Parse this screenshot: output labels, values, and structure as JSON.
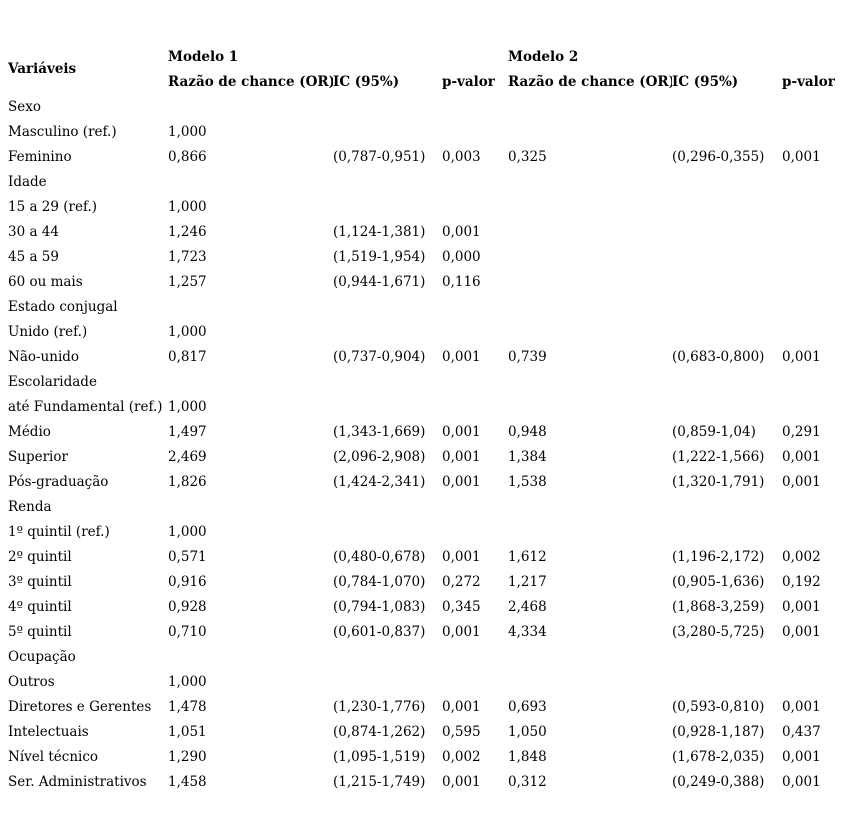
{
  "table": {
    "variables_header": "Variáveis",
    "model1_header": "Modelo 1",
    "model2_header": "Modelo 2",
    "subheaders": [
      "Razão de chance (OR)",
      "IC (95%)",
      "p-valor"
    ],
    "rows": [
      {
        "label": "Sexo",
        "section": true,
        "m1": [
          "",
          "",
          ""
        ],
        "m2": [
          "",
          "",
          ""
        ]
      },
      {
        "label": "Masculino (ref.)",
        "section": false,
        "m1": [
          "1,000",
          "",
          ""
        ],
        "m2": [
          "",
          "",
          ""
        ]
      },
      {
        "label": "Feminino",
        "section": false,
        "m1": [
          "0,866",
          "(0,787-0,951)",
          "0,003"
        ],
        "m2": [
          "0,325",
          "(0,296-0,355)",
          "0,001"
        ]
      },
      {
        "label": "Idade",
        "section": true,
        "m1": [
          "",
          "",
          ""
        ],
        "m2": [
          "",
          "",
          ""
        ]
      },
      {
        "label": "15 a 29 (ref.)",
        "section": false,
        "m1": [
          "1,000",
          "",
          ""
        ],
        "m2": [
          "",
          "",
          ""
        ]
      },
      {
        "label": "30 a 44",
        "section": false,
        "m1": [
          "1,246",
          "(1,124-1,381)",
          "0,001"
        ],
        "m2": [
          "",
          "",
          ""
        ]
      },
      {
        "label": "45 a 59",
        "section": false,
        "m1": [
          "1,723",
          "(1,519-1,954)",
          "0,000"
        ],
        "m2": [
          "",
          "",
          ""
        ]
      },
      {
        "label": "60 ou mais",
        "section": false,
        "m1": [
          "1,257",
          "(0,944-1,671)",
          "0,116"
        ],
        "m2": [
          "",
          "",
          ""
        ]
      },
      {
        "label": "Estado conjugal",
        "section": true,
        "m1": [
          "",
          "",
          ""
        ],
        "m2": [
          "",
          "",
          ""
        ]
      },
      {
        "label": "Unido (ref.)",
        "section": false,
        "m1": [
          "1,000",
          "",
          ""
        ],
        "m2": [
          "",
          "",
          ""
        ]
      },
      {
        "label": "Não-unido",
        "section": false,
        "m1": [
          "0,817",
          "(0,737-0,904)",
          "0,001"
        ],
        "m2": [
          "0,739",
          "(0,683-0,800)",
          "0,001"
        ]
      },
      {
        "label": "Escolaridade",
        "section": true,
        "m1": [
          "",
          "",
          ""
        ],
        "m2": [
          "",
          "",
          ""
        ]
      },
      {
        "label": "até Fundamental (ref.)",
        "section": false,
        "m1": [
          "1,000",
          "",
          ""
        ],
        "m2": [
          "",
          "",
          ""
        ]
      },
      {
        "label": "Médio",
        "section": false,
        "m1": [
          "1,497",
          "(1,343-1,669)",
          "0,001"
        ],
        "m2": [
          "0,948",
          "(0,859-1,04)",
          "0,291"
        ]
      },
      {
        "label": "Superior",
        "section": false,
        "m1": [
          "2,469",
          "(2,096-2,908)",
          "0,001"
        ],
        "m2": [
          "1,384",
          "(1,222-1,566)",
          "0,001"
        ]
      },
      {
        "label": "Pós-graduação",
        "section": false,
        "m1": [
          "1,826",
          "(1,424-2,341)",
          "0,001"
        ],
        "m2": [
          "1,538",
          "(1,320-1,791)",
          "0,001"
        ]
      },
      {
        "label": "Renda",
        "section": true,
        "m1": [
          "",
          "",
          ""
        ],
        "m2": [
          "",
          "",
          ""
        ]
      },
      {
        "label": "1º quintil (ref.)",
        "section": false,
        "m1": [
          "1,000",
          "",
          ""
        ],
        "m2": [
          "",
          "",
          ""
        ]
      },
      {
        "label": "2º quintil",
        "section": false,
        "m1": [
          "0,571",
          "(0,480-0,678)",
          "0,001"
        ],
        "m2": [
          "1,612",
          "(1,196-2,172)",
          "0,002"
        ]
      },
      {
        "label": "3º quintil",
        "section": false,
        "m1": [
          "0,916",
          "(0,784-1,070)",
          "0,272"
        ],
        "m2": [
          "1,217",
          "(0,905-1,636)",
          "0,192"
        ]
      },
      {
        "label": "4º quintil",
        "section": false,
        "m1": [
          "0,928",
          "(0,794-1,083)",
          "0,345"
        ],
        "m2": [
          "2,468",
          "(1,868-3,259)",
          "0,001"
        ]
      },
      {
        "label": "5º quintil",
        "section": false,
        "m1": [
          "0,710",
          "(0,601-0,837)",
          "0,001"
        ],
        "m2": [
          "4,334",
          "(3,280-5,725)",
          "0,001"
        ]
      },
      {
        "label": "Ocupação",
        "section": true,
        "m1": [
          "",
          "",
          ""
        ],
        "m2": [
          "",
          "",
          ""
        ]
      },
      {
        "label": "Outros",
        "section": false,
        "m1": [
          "1,000",
          "",
          ""
        ],
        "m2": [
          "",
          "",
          ""
        ]
      },
      {
        "label": "Diretores e Gerentes",
        "section": false,
        "m1": [
          "1,478",
          "(1,230-1,776)",
          "0,001"
        ],
        "m2": [
          "0,693",
          "(0,593-0,810)",
          "0,001"
        ]
      },
      {
        "label": "Intelectuais",
        "section": false,
        "m1": [
          "1,051",
          "(0,874-1,262)",
          "0,595"
        ],
        "m2": [
          "1,050",
          "(0,928-1,187)",
          "0,437"
        ]
      },
      {
        "label": "Nível técnico",
        "section": false,
        "m1": [
          "1,290",
          "(1,095-1,519)",
          "0,002"
        ],
        "m2": [
          "1,848",
          "(1,678-2,035)",
          "0,001"
        ]
      },
      {
        "label": "Ser. Administrativos",
        "section": false,
        "m1": [
          "1,458",
          "(1,215-1,749)",
          "0,001"
        ],
        "m2": [
          "0,312",
          "(0,249-0,388)",
          "0,001"
        ]
      }
    ]
  }
}
